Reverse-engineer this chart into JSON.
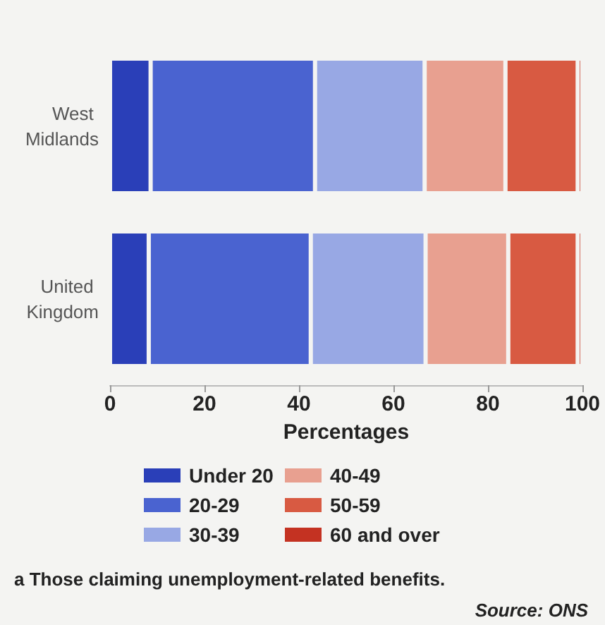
{
  "chart_data": {
    "type": "bar",
    "orientation": "horizontal",
    "stacked": true,
    "categories": [
      "West Midlands",
      "United Kingdom"
    ],
    "series": [
      {
        "name": "Under 20",
        "color": "#2a3fb8",
        "values": [
          8.6,
          8.2
        ]
      },
      {
        "name": "20-29",
        "color": "#4a63d0",
        "values": [
          34.8,
          34.3
        ]
      },
      {
        "name": "30-39",
        "color": "#98a8e4",
        "values": [
          23.2,
          24.3
        ]
      },
      {
        "name": "40-49",
        "color": "#e8a090",
        "values": [
          17.1,
          17.5
        ]
      },
      {
        "name": "50-59",
        "color": "#d85a42",
        "values": [
          15.3,
          14.7
        ]
      },
      {
        "name": "60 and over",
        "color": "#c43222",
        "values": [
          1.0,
          1.0
        ]
      }
    ],
    "xlabel": "Percentages",
    "xlim": [
      0,
      100
    ],
    "xticks": [
      0,
      20,
      40,
      60,
      80,
      100
    ],
    "grid": false,
    "legend": "bottom",
    "annotations": [
      "a Those claiming unemployment-related benefits.",
      "Source: ONS"
    ]
  }
}
